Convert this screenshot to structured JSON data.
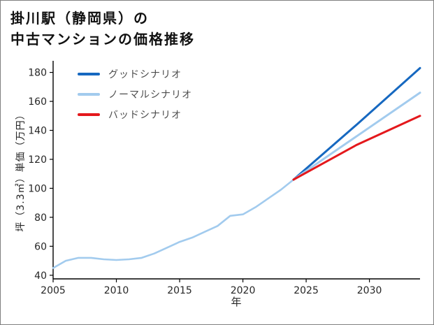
{
  "page": {
    "title_line1": "掛川駅（静岡県）の",
    "title_line2": "中古マンションの価格推移"
  },
  "chart_data": {
    "type": "line",
    "title": "掛川駅（静岡県）の中古マンションの価格推移",
    "xlabel": "年",
    "ylabel": "坪（3.3㎡）単価（万円）",
    "xlim": [
      2005,
      2034
    ],
    "ylim": [
      37.5,
      188
    ],
    "xticks": [
      2005,
      2010,
      2015,
      2020,
      2025,
      2030
    ],
    "yticks": [
      40,
      60,
      80,
      100,
      120,
      140,
      160,
      180
    ],
    "grid": false,
    "legend_position": "upper-left",
    "colors": {
      "good": "#1668c0",
      "normal": "#a2cbee",
      "bad": "#e4181c",
      "axis": "#000000",
      "background": "#ffffff",
      "border": "#7f7f7f"
    },
    "legend": [
      {
        "label": "グッドシナリオ",
        "color": "#1668c0",
        "series_id": "good"
      },
      {
        "label": "ノーマルシナリオ",
        "color": "#a2cbee",
        "series_id": "normal"
      },
      {
        "label": "バッドシナリオ",
        "color": "#e4181c",
        "series_id": "bad"
      }
    ],
    "series": [
      {
        "id": "history",
        "color": "#a2cbee",
        "width": 2.6,
        "x": [
          2005,
          2006,
          2007,
          2008,
          2009,
          2010,
          2011,
          2012,
          2013,
          2014,
          2015,
          2016,
          2017,
          2018,
          2019,
          2020,
          2021,
          2022,
          2023,
          2024
        ],
        "y": [
          45,
          50,
          52,
          52,
          51,
          50.5,
          51,
          52,
          55,
          59,
          63,
          66,
          70,
          74,
          81,
          82,
          87,
          93,
          99,
          106
        ]
      },
      {
        "id": "good",
        "label": "グッドシナリオ",
        "color": "#1668c0",
        "width": 3,
        "x": [
          2024,
          2029,
          2034
        ],
        "y": [
          106,
          144,
          183
        ]
      },
      {
        "id": "normal",
        "label": "ノーマルシナリオ",
        "color": "#a2cbee",
        "width": 3,
        "x": [
          2024,
          2029,
          2034
        ],
        "y": [
          106,
          136,
          166
        ]
      },
      {
        "id": "bad",
        "label": "バッドシナリオ",
        "color": "#e4181c",
        "width": 3,
        "x": [
          2024,
          2029,
          2034
        ],
        "y": [
          106,
          130,
          150
        ]
      }
    ]
  }
}
